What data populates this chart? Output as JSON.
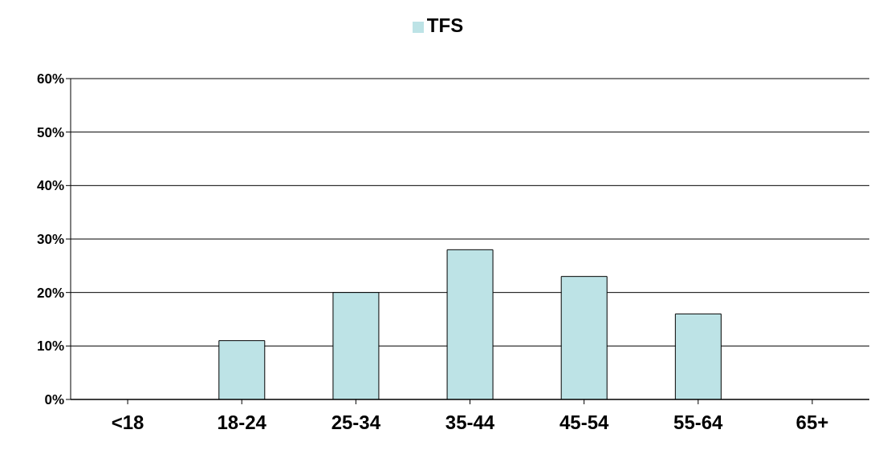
{
  "chart_data": {
    "type": "bar",
    "categories": [
      "<18",
      "18-24",
      "25-34",
      "35-44",
      "45-54",
      "55-64",
      "65+"
    ],
    "series": [
      {
        "name": "TFS",
        "color": "#bde3e6",
        "values": [
          0,
          11,
          20,
          28,
          23,
          16,
          0
        ]
      }
    ],
    "ylim": [
      0,
      60
    ],
    "yticks": [
      {
        "value": 0,
        "label": "0%"
      },
      {
        "value": 10,
        "label": "10%"
      },
      {
        "value": 20,
        "label": "20%"
      },
      {
        "value": 30,
        "label": "30%"
      },
      {
        "value": 40,
        "label": "40%"
      },
      {
        "value": 50,
        "label": "50%"
      },
      {
        "value": 60,
        "label": "60%"
      }
    ],
    "grid": "y",
    "legend": "top"
  }
}
